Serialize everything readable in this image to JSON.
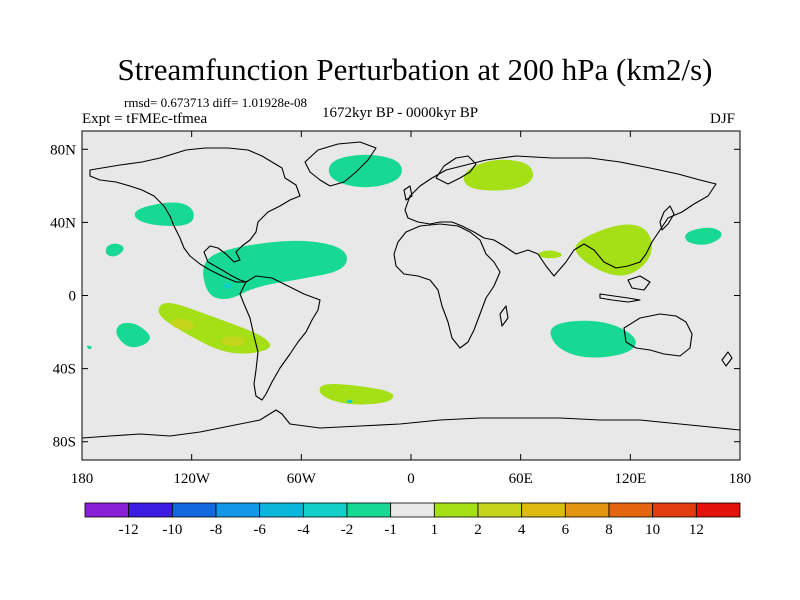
{
  "title": "Streamfunction Perturbation at 200 hPa (km2/s)",
  "stats": "rmsd= 0.673713 diff= 1.01928e-08",
  "experiment": "Expt = tFMEc-tfmea",
  "period": "1672kyr BP - 0000kyr BP",
  "season": "DJF",
  "chart_data": {
    "type": "heatmap",
    "projection": "cylindrical-equidistant",
    "lon_range": [
      -180,
      180
    ],
    "lat_range": [
      -90,
      90
    ],
    "x_ticks": [
      {
        "value": -180,
        "label": "180"
      },
      {
        "value": -120,
        "label": "120W"
      },
      {
        "value": -60,
        "label": "60W"
      },
      {
        "value": 0,
        "label": "0"
      },
      {
        "value": 60,
        "label": "60E"
      },
      {
        "value": 120,
        "label": "120E"
      },
      {
        "value": 180,
        "label": "180"
      }
    ],
    "y_ticks": [
      {
        "value": 80,
        "label": "80N"
      },
      {
        "value": 40,
        "label": "40N"
      },
      {
        "value": 0,
        "label": "0"
      },
      {
        "value": -40,
        "label": "40S"
      },
      {
        "value": -80,
        "label": "80S"
      }
    ],
    "colorbar": {
      "colors": [
        "#8a1fd8",
        "#3a1de0",
        "#1368e0",
        "#1298e8",
        "#0ab7db",
        "#11cfc9",
        "#18d993",
        "#e8e8e8",
        "#a5df16",
        "#c4d51b",
        "#ddbb0e",
        "#e39410",
        "#e4670f",
        "#e33b10",
        "#e3120b"
      ],
      "labels": [
        "-12",
        "-10",
        "-8",
        "-6",
        "-4",
        "-2",
        "-1",
        "1",
        "2",
        "4",
        "6",
        "8",
        "10",
        "12"
      ]
    },
    "anomaly_regions": [
      {
        "name": "north-atlantic",
        "value": -1.5,
        "points": [
          [
            -45,
            74
          ],
          [
            -25,
            78
          ],
          [
            -5,
            74
          ],
          [
            -5,
            63
          ],
          [
            -25,
            58
          ],
          [
            -45,
            63
          ]
        ]
      },
      {
        "name": "north-pacific",
        "value": -1.5,
        "points": [
          [
            -150,
            48
          ],
          [
            -128,
            52
          ],
          [
            -118,
            47
          ],
          [
            -120,
            38
          ],
          [
            -140,
            38
          ],
          [
            -152,
            42
          ]
        ]
      },
      {
        "name": "hawaii",
        "value": -1.5,
        "points": [
          [
            -167,
            27
          ],
          [
            -161,
            29
          ],
          [
            -156,
            26
          ],
          [
            -161,
            21
          ],
          [
            -167,
            22
          ]
        ]
      },
      {
        "name": "caribbean-atlantic",
        "value": -1.5,
        "points": [
          [
            -115,
            20
          ],
          [
            -95,
            27
          ],
          [
            -60,
            31
          ],
          [
            -35,
            26
          ],
          [
            -35,
            14
          ],
          [
            -60,
            9
          ],
          [
            -85,
            5
          ],
          [
            -100,
            -3
          ],
          [
            -112,
            0
          ]
        ]
      },
      {
        "name": "tropical-east-pacific",
        "value": -3,
        "points": [
          [
            -103,
            6
          ],
          [
            -100,
            7
          ],
          [
            -97,
            5
          ],
          [
            -101,
            3
          ]
        ]
      },
      {
        "name": "south-pacific-west",
        "value": -1.5,
        "points": [
          [
            -160,
            -15
          ],
          [
            -150,
            -15
          ],
          [
            -140,
            -24
          ],
          [
            -153,
            -30
          ],
          [
            -162,
            -22
          ]
        ]
      },
      {
        "name": "siberia",
        "value": 1.5,
        "points": [
          [
            28,
            68
          ],
          [
            45,
            75
          ],
          [
            65,
            73
          ],
          [
            68,
            63
          ],
          [
            55,
            57
          ],
          [
            30,
            58
          ]
        ]
      },
      {
        "name": "east-asia",
        "value": 1.5,
        "points": [
          [
            90,
            30
          ],
          [
            115,
            40
          ],
          [
            130,
            37
          ],
          [
            133,
            22
          ],
          [
            120,
            10
          ],
          [
            105,
            12
          ],
          [
            90,
            22
          ]
        ]
      },
      {
        "name": "arabian-sea",
        "value": 1.5,
        "points": [
          [
            70,
            24
          ],
          [
            78,
            25
          ],
          [
            84,
            22
          ],
          [
            78,
            20
          ],
          [
            70,
            21
          ]
        ]
      },
      {
        "name": "north-pacific-east",
        "value": -1.5,
        "points": [
          [
            150,
            35
          ],
          [
            165,
            38
          ],
          [
            172,
            33
          ],
          [
            162,
            27
          ],
          [
            150,
            29
          ]
        ]
      },
      {
        "name": "south-pacific-central",
        "value": 1.5,
        "points": [
          [
            -135,
            -2
          ],
          [
            -110,
            -11
          ],
          [
            -80,
            -22
          ],
          [
            -75,
            -30
          ],
          -1,
          [
            -100,
            -33
          ],
          [
            -125,
            -20
          ],
          [
            -140,
            -10
          ]
        ]
      },
      {
        "name": "south-pacific-max1",
        "value": 3,
        "points": [
          [
            -130,
            -12
          ],
          [
            -118,
            -14
          ],
          [
            -120,
            -20
          ],
          [
            -132,
            -17
          ]
        ]
      },
      {
        "name": "south-pacific-max2",
        "value": 3,
        "points": [
          [
            -103,
            -22
          ],
          [
            -90,
            -23
          ],
          [
            -92,
            -28
          ],
          [
            -104,
            -27
          ]
        ]
      },
      {
        "name": "indian-ocean",
        "value": -1.5,
        "points": [
          [
            75,
            -15
          ],
          [
            105,
            -13
          ],
          [
            125,
            -23
          ],
          [
            120,
            -32
          ],
          [
            95,
            -35
          ],
          [
            78,
            -28
          ]
        ]
      },
      {
        "name": "south-atlantic",
        "value": 1.5,
        "points": [
          [
            -50,
            -48
          ],
          [
            -30,
            -49
          ],
          [
            -8,
            -53
          ],
          [
            -12,
            -59
          ],
          [
            -35,
            -60
          ],
          [
            -50,
            -55
          ]
        ]
      },
      {
        "name": "south-atlantic-small",
        "value": -3,
        "points": [
          [
            -35,
            -57
          ],
          [
            -32,
            -57
          ],
          [
            -32,
            -59
          ],
          [
            -35,
            -59
          ]
        ]
      },
      {
        "name": "far-south-pacific",
        "value": -1.5,
        "points": [
          [
            -178,
            -27
          ],
          [
            -174,
            -28
          ],
          [
            -176,
            -30
          ]
        ]
      }
    ]
  }
}
